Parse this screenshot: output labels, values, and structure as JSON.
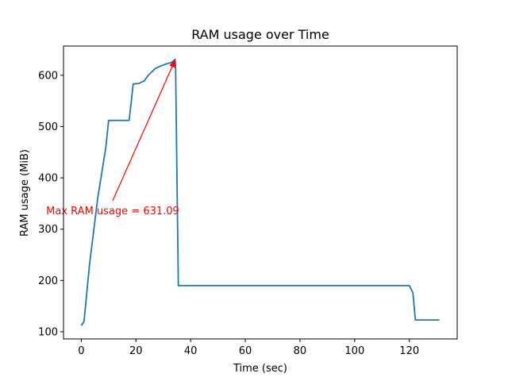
{
  "chart_data": {
    "type": "line",
    "title": "RAM usage over Time",
    "xlabel": "Time (sec)",
    "ylabel": "RAM usage (MiB)",
    "xlim": [
      -6.5,
      137.5
    ],
    "ylim": [
      86,
      657
    ],
    "xticks": [
      0,
      20,
      40,
      60,
      80,
      100,
      120
    ],
    "yticks": [
      100,
      200,
      300,
      400,
      500,
      600
    ],
    "grid": false,
    "series_color": "#1f77b4",
    "x": [
      0,
      1,
      3,
      6,
      9,
      10,
      17.5,
      19,
      21,
      23,
      24.5,
      27,
      29,
      31,
      33,
      34.3,
      34.5,
      35.5,
      120,
      121.3,
      122.2,
      124,
      131
    ],
    "y": [
      112,
      120,
      230,
      360,
      460,
      512,
      512,
      583,
      584,
      589,
      600,
      613,
      618,
      622,
      625,
      631.09,
      618,
      190,
      190,
      176,
      123,
      123,
      123
    ],
    "annotation": {
      "text": "Max RAM usage = 631.09",
      "color": "#ff0000",
      "point": [
        34.3,
        631.09
      ],
      "text_pos": [
        11.5,
        337
      ]
    }
  }
}
